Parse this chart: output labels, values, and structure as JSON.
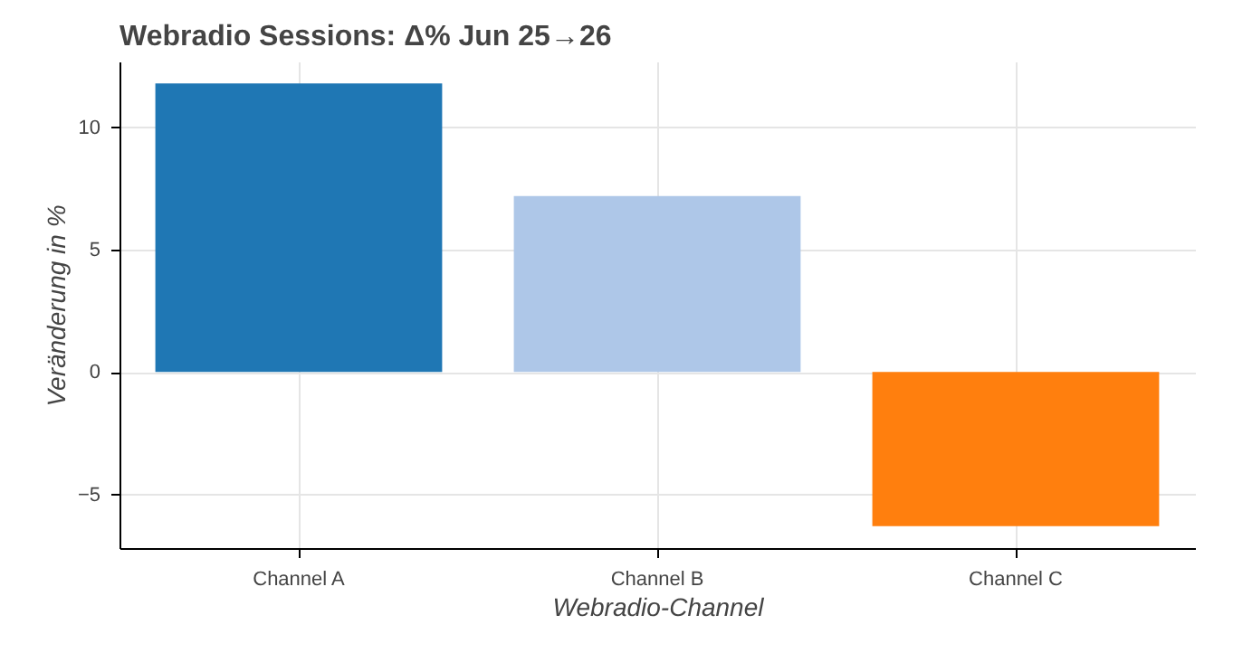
{
  "chart_data": {
    "type": "bar",
    "title": "Webradio Sessions: Δ% Jun 25→26",
    "xlabel": "Webradio-Channel",
    "ylabel": "Veränderung in %",
    "categories": [
      "Channel A",
      "Channel B",
      "Channel C"
    ],
    "values": [
      11.8,
      7.2,
      -6.3
    ],
    "colors": [
      "#1f77b4",
      "#aec7e8",
      "#ff7f0e"
    ],
    "ylim": [
      -7.2,
      12.7
    ],
    "yticks": [
      -5,
      0,
      5,
      10
    ],
    "grid": true
  }
}
